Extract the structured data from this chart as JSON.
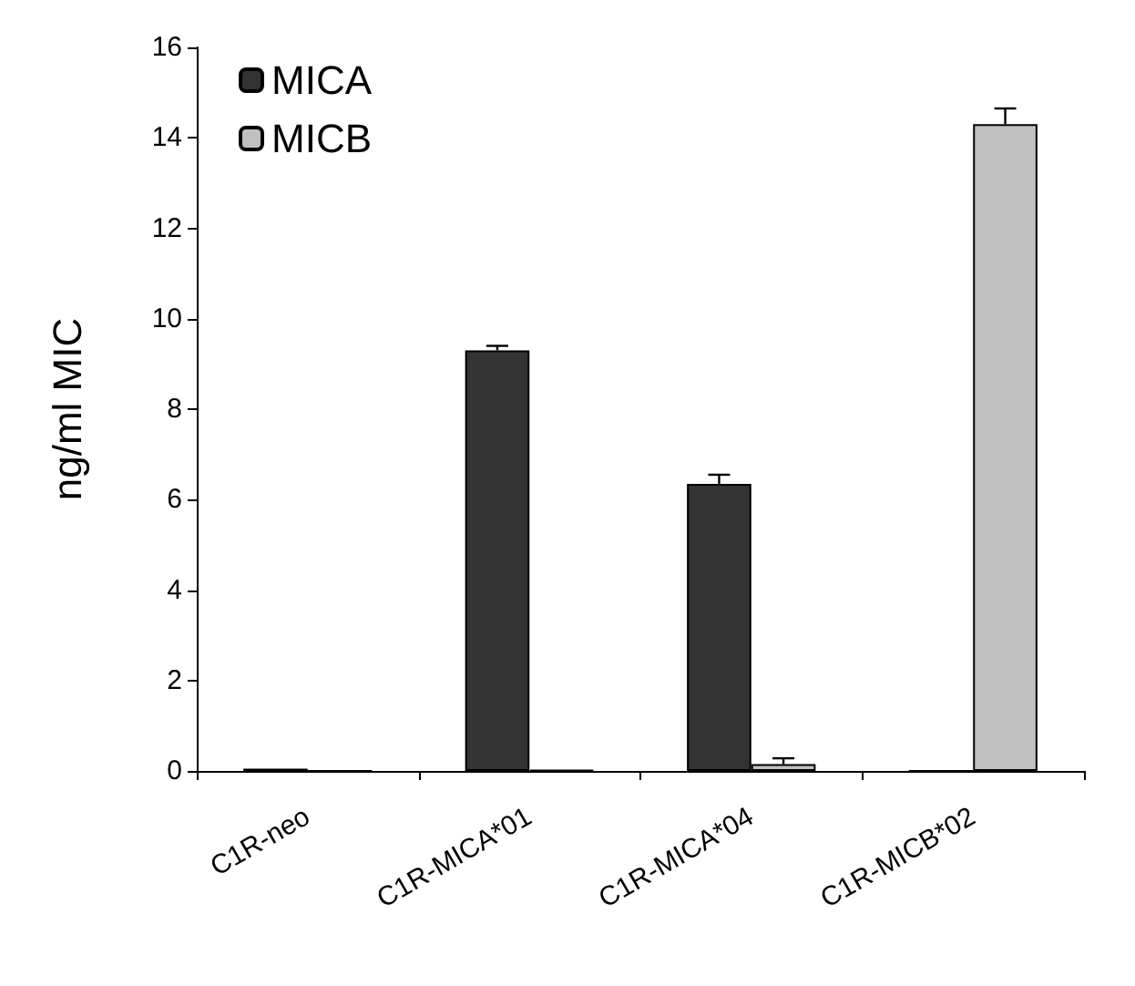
{
  "chart_data": {
    "type": "bar",
    "ylabel": "ng/ml MIC",
    "categories": [
      "C1R-neo",
      "C1R-MICA*01",
      "C1R-MICA*04",
      "C1R-MICB*02"
    ],
    "series": [
      {
        "name": "MICA",
        "color": "#333333",
        "values": [
          0.05,
          9.3,
          6.35,
          0
        ],
        "errors": [
          null,
          0.1,
          0.2,
          null
        ]
      },
      {
        "name": "MICB",
        "color": "#c0c0c0",
        "values": [
          0,
          0.02,
          0.15,
          14.3
        ],
        "errors": [
          null,
          null,
          0.13,
          0.35
        ]
      }
    ],
    "ylim": [
      0,
      16
    ],
    "yticks": [
      0,
      2,
      4,
      6,
      8,
      10,
      12,
      14,
      16
    ],
    "grid": false,
    "legend": "top left"
  }
}
